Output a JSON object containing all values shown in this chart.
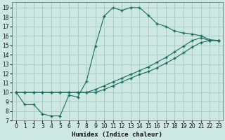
{
  "xlabel": "Humidex (Indice chaleur)",
  "bg_color": "#cce8e0",
  "grid_color": "#a8ccc8",
  "line_color": "#1a6b60",
  "xlim": [
    -0.5,
    23.5
  ],
  "ylim": [
    7,
    19.6
  ],
  "xticks": [
    0,
    1,
    2,
    3,
    4,
    5,
    6,
    7,
    8,
    9,
    10,
    11,
    12,
    13,
    14,
    15,
    16,
    17,
    18,
    19,
    20,
    21,
    22,
    23
  ],
  "yticks": [
    7,
    8,
    9,
    10,
    11,
    12,
    13,
    14,
    15,
    16,
    17,
    18,
    19
  ],
  "series1_x": [
    0,
    1,
    2,
    3,
    4,
    5,
    6,
    7,
    8,
    9,
    10,
    11,
    12,
    13,
    14,
    15,
    16,
    17,
    18,
    19,
    20,
    21,
    22,
    23
  ],
  "series1_y": [
    10.0,
    8.7,
    8.7,
    7.7,
    7.5,
    7.5,
    9.7,
    9.5,
    11.2,
    14.9,
    18.1,
    19.0,
    18.7,
    19.0,
    19.0,
    18.2,
    17.3,
    17.0,
    16.5,
    16.3,
    16.2,
    16.0,
    15.6,
    15.5
  ],
  "series2_x": [
    0,
    1,
    2,
    3,
    4,
    5,
    6,
    7,
    8,
    9,
    10,
    11,
    12,
    13,
    14,
    15,
    16,
    17,
    18,
    19,
    20,
    21,
    22,
    23
  ],
  "series2_y": [
    10.0,
    10.0,
    10.0,
    10.0,
    10.0,
    10.0,
    10.0,
    10.0,
    10.0,
    10.3,
    10.7,
    11.1,
    11.5,
    11.9,
    12.3,
    12.7,
    13.2,
    13.7,
    14.3,
    14.9,
    15.5,
    15.8,
    15.5,
    15.5
  ],
  "series3_x": [
    0,
    1,
    2,
    3,
    4,
    5,
    6,
    7,
    8,
    9,
    10,
    11,
    12,
    13,
    14,
    15,
    16,
    17,
    18,
    19,
    20,
    21,
    22,
    23
  ],
  "series3_y": [
    10.0,
    10.0,
    10.0,
    10.0,
    10.0,
    10.0,
    10.0,
    10.0,
    10.0,
    10.0,
    10.3,
    10.7,
    11.1,
    11.5,
    11.9,
    12.2,
    12.6,
    13.1,
    13.6,
    14.2,
    14.8,
    15.3,
    15.5,
    15.5
  ]
}
